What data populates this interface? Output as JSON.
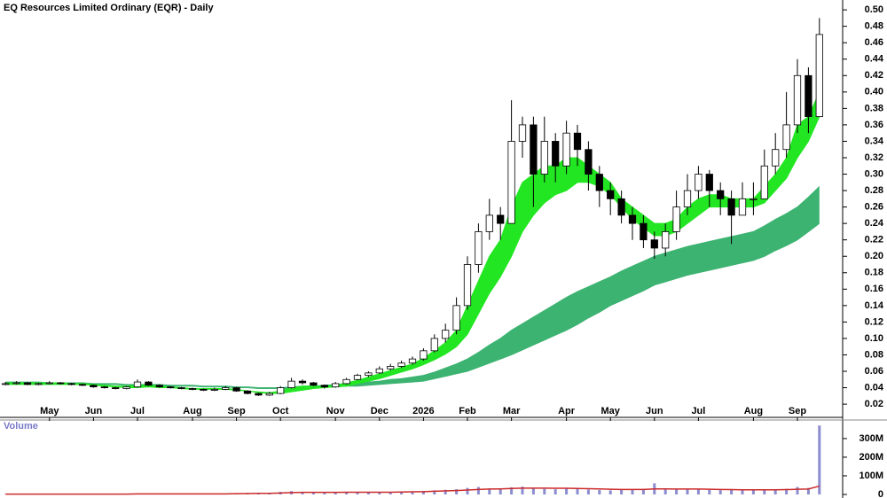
{
  "chart_data": [
    {
      "type": "candlestick",
      "title": "EQ Resources Limited Ordinary (EQR) - Daily",
      "categories": [
        null,
        null,
        null,
        null,
        "May",
        null,
        null,
        null,
        "Jun",
        null,
        null,
        null,
        "Jul",
        null,
        null,
        null,
        null,
        "Aug",
        null,
        null,
        null,
        "Sep",
        null,
        null,
        null,
        "Oct",
        null,
        null,
        null,
        null,
        "Nov",
        null,
        null,
        null,
        "Dec",
        null,
        null,
        null,
        "2026",
        null,
        null,
        null,
        "Feb",
        null,
        null,
        null,
        "Mar",
        null,
        null,
        null,
        null,
        "Apr",
        null,
        null,
        null,
        "May",
        null,
        null,
        null,
        "Jun",
        null,
        null,
        null,
        "Jul",
        null,
        null,
        null,
        null,
        "Aug",
        null,
        null,
        null,
        "Sep",
        null,
        null
      ],
      "open": [
        0.044,
        0.045,
        0.046,
        0.044,
        0.045,
        0.046,
        0.045,
        0.044,
        0.043,
        0.041,
        0.04,
        0.039,
        0.041,
        0.047,
        0.043,
        0.041,
        0.04,
        0.039,
        0.038,
        0.037,
        0.038,
        0.04,
        0.036,
        0.033,
        0.031,
        0.033,
        0.04,
        0.048,
        0.046,
        0.043,
        0.041,
        0.045,
        0.05,
        0.055,
        0.058,
        0.063,
        0.066,
        0.07,
        0.075,
        0.085,
        0.1,
        0.11,
        0.14,
        0.19,
        0.23,
        0.25,
        0.24,
        0.34,
        0.36,
        0.3,
        0.34,
        0.31,
        0.35,
        0.33,
        0.3,
        0.28,
        0.27,
        0.25,
        0.24,
        0.22,
        0.21,
        0.23,
        0.26,
        0.28,
        0.3,
        0.28,
        0.27,
        0.25,
        0.27,
        0.27,
        0.31,
        0.33,
        0.36,
        0.42,
        0.37
      ],
      "high": [
        0.047,
        0.048,
        0.047,
        0.046,
        0.048,
        0.047,
        0.046,
        0.045,
        0.044,
        0.042,
        0.041,
        0.042,
        0.05,
        0.048,
        0.044,
        0.042,
        0.041,
        0.04,
        0.039,
        0.04,
        0.042,
        0.041,
        0.037,
        0.034,
        0.035,
        0.042,
        0.052,
        0.05,
        0.047,
        0.044,
        0.047,
        0.052,
        0.057,
        0.06,
        0.066,
        0.069,
        0.073,
        0.078,
        0.088,
        0.105,
        0.118,
        0.15,
        0.2,
        0.24,
        0.27,
        0.26,
        0.39,
        0.37,
        0.37,
        0.37,
        0.35,
        0.365,
        0.36,
        0.34,
        0.31,
        0.29,
        0.28,
        0.26,
        0.25,
        0.23,
        0.24,
        0.28,
        0.3,
        0.31,
        0.305,
        0.29,
        0.28,
        0.29,
        0.29,
        0.33,
        0.35,
        0.4,
        0.44,
        0.43,
        0.49
      ],
      "low": [
        0.043,
        0.044,
        0.043,
        0.043,
        0.044,
        0.044,
        0.043,
        0.042,
        0.04,
        0.039,
        0.038,
        0.038,
        0.04,
        0.042,
        0.04,
        0.039,
        0.038,
        0.037,
        0.036,
        0.036,
        0.037,
        0.035,
        0.032,
        0.03,
        0.03,
        0.032,
        0.039,
        0.044,
        0.042,
        0.039,
        0.04,
        0.044,
        0.049,
        0.053,
        0.057,
        0.061,
        0.064,
        0.068,
        0.073,
        0.083,
        0.095,
        0.105,
        0.135,
        0.18,
        0.22,
        0.22,
        0.24,
        0.32,
        0.26,
        0.29,
        0.29,
        0.3,
        0.31,
        0.28,
        0.26,
        0.25,
        0.24,
        0.22,
        0.21,
        0.197,
        0.2,
        0.22,
        0.25,
        0.27,
        0.26,
        0.25,
        0.215,
        0.25,
        0.25,
        0.27,
        0.3,
        0.32,
        0.35,
        0.35,
        0.37
      ],
      "close": [
        0.045,
        0.046,
        0.044,
        0.045,
        0.046,
        0.045,
        0.044,
        0.043,
        0.041,
        0.04,
        0.039,
        0.041,
        0.047,
        0.043,
        0.041,
        0.04,
        0.039,
        0.038,
        0.037,
        0.038,
        0.04,
        0.036,
        0.033,
        0.031,
        0.033,
        0.04,
        0.048,
        0.046,
        0.043,
        0.041,
        0.045,
        0.05,
        0.055,
        0.058,
        0.063,
        0.066,
        0.07,
        0.075,
        0.085,
        0.1,
        0.11,
        0.14,
        0.19,
        0.23,
        0.25,
        0.24,
        0.34,
        0.36,
        0.3,
        0.34,
        0.31,
        0.35,
        0.33,
        0.3,
        0.28,
        0.27,
        0.25,
        0.24,
        0.22,
        0.21,
        0.23,
        0.26,
        0.28,
        0.3,
        0.28,
        0.27,
        0.25,
        0.27,
        0.27,
        0.31,
        0.33,
        0.36,
        0.42,
        0.37,
        0.47
      ],
      "up_color": "#ffffff",
      "down_color": "#000000",
      "ribbons": [
        {
          "color": "#3cb371",
          "upper": [
            0.047,
            0.047,
            0.047,
            0.047,
            0.046,
            0.046,
            0.046,
            0.046,
            0.045,
            0.045,
            0.045,
            0.044,
            0.044,
            0.044,
            0.044,
            0.043,
            0.043,
            0.043,
            0.042,
            0.042,
            0.042,
            0.041,
            0.041,
            0.04,
            0.04,
            0.04,
            0.041,
            0.042,
            0.042,
            0.043,
            0.044,
            0.045,
            0.046,
            0.047,
            0.048,
            0.05,
            0.051,
            0.053,
            0.055,
            0.059,
            0.064,
            0.069,
            0.075,
            0.083,
            0.092,
            0.1,
            0.11,
            0.118,
            0.126,
            0.134,
            0.142,
            0.15,
            0.157,
            0.163,
            0.169,
            0.175,
            0.182,
            0.188,
            0.194,
            0.2,
            0.204,
            0.208,
            0.212,
            0.215,
            0.218,
            0.221,
            0.224,
            0.227,
            0.23,
            0.237,
            0.245,
            0.252,
            0.26,
            0.272,
            0.285
          ],
          "lower": [
            0.046,
            0.046,
            0.046,
            0.046,
            0.045,
            0.045,
            0.045,
            0.045,
            0.044,
            0.044,
            0.044,
            0.043,
            0.043,
            0.043,
            0.043,
            0.042,
            0.042,
            0.042,
            0.041,
            0.041,
            0.041,
            0.04,
            0.04,
            0.039,
            0.039,
            0.039,
            0.039,
            0.04,
            0.04,
            0.041,
            0.041,
            0.042,
            0.042,
            0.043,
            0.044,
            0.045,
            0.046,
            0.047,
            0.048,
            0.051,
            0.054,
            0.057,
            0.06,
            0.065,
            0.07,
            0.075,
            0.08,
            0.086,
            0.092,
            0.098,
            0.104,
            0.11,
            0.117,
            0.125,
            0.132,
            0.14,
            0.146,
            0.152,
            0.158,
            0.165,
            0.169,
            0.173,
            0.177,
            0.18,
            0.183,
            0.186,
            0.189,
            0.192,
            0.195,
            0.2,
            0.207,
            0.213,
            0.22,
            0.23,
            0.24
          ]
        },
        {
          "color": "#22e622",
          "upper": [
            0.046,
            0.046,
            0.046,
            0.046,
            0.046,
            0.046,
            0.045,
            0.045,
            0.044,
            0.043,
            0.042,
            0.042,
            0.043,
            0.043,
            0.042,
            0.041,
            0.04,
            0.039,
            0.039,
            0.039,
            0.039,
            0.038,
            0.036,
            0.035,
            0.034,
            0.036,
            0.04,
            0.042,
            0.042,
            0.042,
            0.043,
            0.046,
            0.049,
            0.053,
            0.057,
            0.061,
            0.065,
            0.069,
            0.076,
            0.085,
            0.095,
            0.11,
            0.14,
            0.17,
            0.2,
            0.22,
            0.26,
            0.29,
            0.3,
            0.31,
            0.31,
            0.32,
            0.32,
            0.31,
            0.3,
            0.29,
            0.27,
            0.26,
            0.25,
            0.24,
            0.24,
            0.245,
            0.26,
            0.27,
            0.275,
            0.275,
            0.27,
            0.27,
            0.27,
            0.285,
            0.3,
            0.32,
            0.36,
            0.37,
            0.4
          ],
          "lower": [
            0.044,
            0.044,
            0.044,
            0.044,
            0.044,
            0.044,
            0.044,
            0.044,
            0.043,
            0.042,
            0.041,
            0.04,
            0.04,
            0.041,
            0.04,
            0.04,
            0.039,
            0.038,
            0.038,
            0.038,
            0.038,
            0.037,
            0.036,
            0.034,
            0.033,
            0.033,
            0.035,
            0.037,
            0.039,
            0.04,
            0.041,
            0.042,
            0.045,
            0.048,
            0.051,
            0.055,
            0.059,
            0.063,
            0.068,
            0.074,
            0.081,
            0.09,
            0.105,
            0.13,
            0.155,
            0.175,
            0.2,
            0.23,
            0.25,
            0.265,
            0.275,
            0.28,
            0.29,
            0.29,
            0.285,
            0.275,
            0.26,
            0.245,
            0.235,
            0.225,
            0.225,
            0.23,
            0.24,
            0.25,
            0.26,
            0.26,
            0.26,
            0.26,
            0.26,
            0.265,
            0.28,
            0.295,
            0.32,
            0.34,
            0.37
          ]
        }
      ],
      "ylim": [
        0.005,
        0.512
      ],
      "yticks": [
        0.02,
        0.04,
        0.06,
        0.08,
        {
          "value": 0.1,
          "label": "0.10"
        },
        0.12,
        0.14,
        0.16,
        0.18,
        {
          "value": 0.2,
          "label": "0.20"
        },
        0.22,
        0.24,
        0.26,
        0.28,
        {
          "value": 0.3,
          "label": "0.30"
        },
        0.32,
        0.34,
        0.36,
        0.38,
        {
          "value": 0.4,
          "label": "0.40"
        },
        0.42,
        0.44,
        0.46,
        0.48,
        {
          "value": 0.5,
          "label": "0.50"
        }
      ]
    },
    {
      "type": "bar",
      "title": "Volume",
      "color": "#8c8cd0",
      "values": [
        2,
        2,
        3,
        2,
        2,
        3,
        2,
        2,
        2,
        3,
        2,
        2,
        4,
        3,
        2,
        2,
        2,
        2,
        2,
        3,
        3,
        6,
        8,
        9,
        7,
        14,
        18,
        12,
        10,
        9,
        11,
        13,
        10,
        12,
        14,
        11,
        13,
        15,
        18,
        22,
        25,
        28,
        35,
        40,
        32,
        30,
        38,
        42,
        34,
        30,
        28,
        33,
        30,
        26,
        24,
        22,
        25,
        27,
        30,
        60,
        28,
        26,
        30,
        27,
        24,
        23,
        25,
        22,
        24,
        28,
        26,
        30,
        40,
        35,
        370
      ],
      "line": {
        "color": "#cc2a2a",
        "values": [
          2,
          2,
          2,
          2,
          2,
          2,
          2,
          2,
          2,
          2,
          2,
          2,
          3,
          3,
          3,
          3,
          3,
          3,
          3,
          3,
          3,
          4,
          5,
          6,
          6,
          8,
          10,
          11,
          11,
          11,
          11,
          12,
          12,
          12,
          12,
          12,
          13,
          14,
          15,
          17,
          19,
          21,
          24,
          27,
          29,
          30,
          32,
          34,
          34,
          34,
          33,
          33,
          32,
          31,
          30,
          28,
          27,
          27,
          27,
          30,
          30,
          29,
          29,
          29,
          28,
          27,
          26,
          25,
          25,
          25,
          25,
          26,
          28,
          29,
          45
        ]
      },
      "ylim": [
        0,
        390
      ],
      "yticks": [
        0,
        {
          "value": 100,
          "label": "100M"
        },
        {
          "value": 200,
          "label": "200M"
        },
        {
          "value": 300,
          "label": "300M"
        }
      ]
    }
  ]
}
